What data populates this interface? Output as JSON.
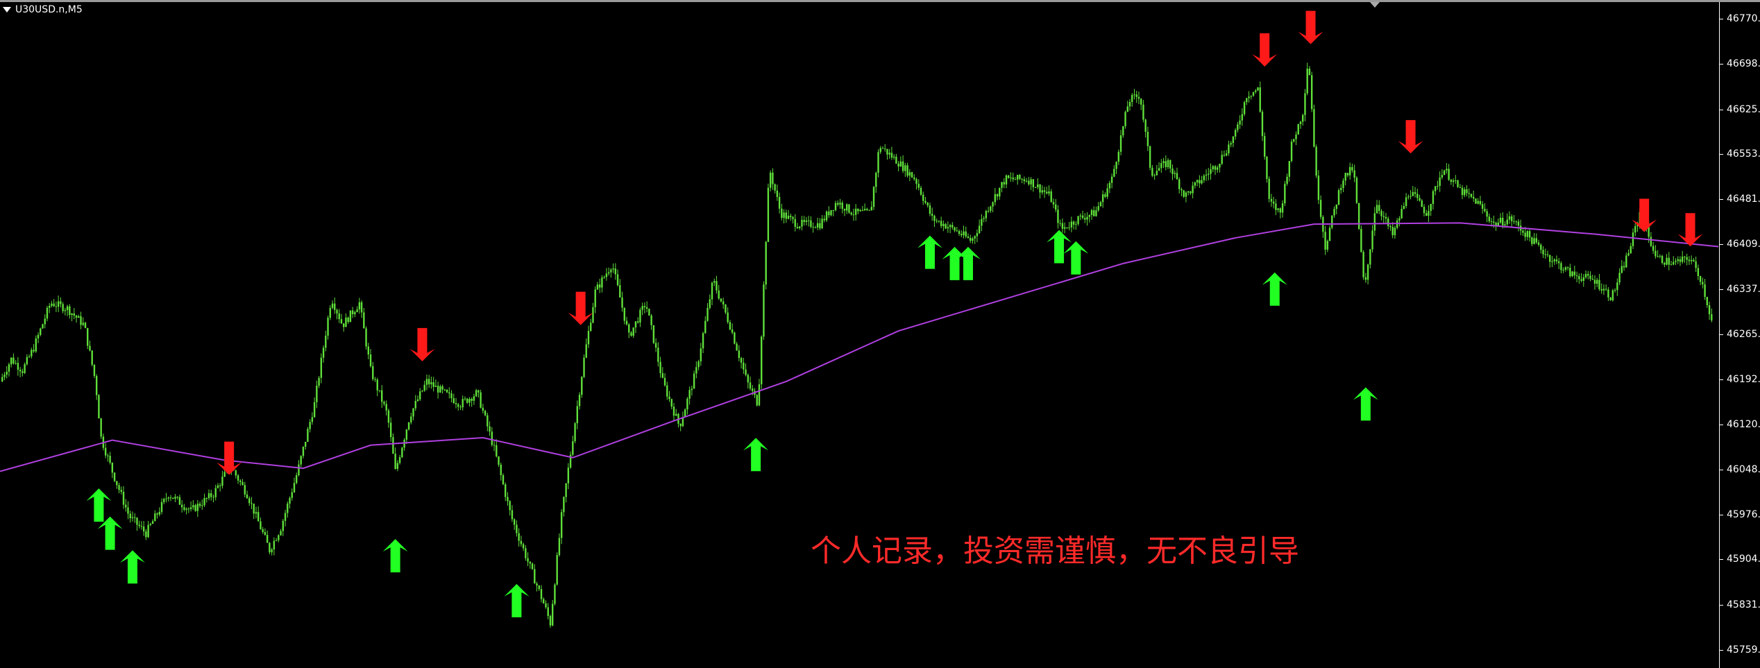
{
  "window": {
    "symbol_title": "U30USD.n,M5"
  },
  "annotation": "个人记录，投资需谨慎，无不良引导",
  "colors": {
    "background": "#000000",
    "candle": "#5fe03a",
    "moving_average": "#b040e0",
    "buy_arrow": "#22ff22",
    "sell_arrow": "#ff1a1a",
    "annotation": "#ff2a2a",
    "axis_text": "#ffffff"
  },
  "icons": {
    "menu": "triangle-down-icon",
    "chart_shift": "triangle-down-icon",
    "buy": "arrow-up-icon",
    "sell": "arrow-down-icon"
  },
  "chart_data": {
    "type": "candlestick",
    "symbol": "U30USD.n",
    "timeframe": "M5",
    "ylim": [
      45725,
      46800
    ],
    "y_ticks": [
      "46770.0",
      "46698.0",
      "46625.0",
      "46553.0",
      "46481.0",
      "46409.0",
      "46337.0",
      "46265.0",
      "46192.0",
      "46120.0",
      "46048.0",
      "45976.0",
      "45904.0",
      "45831.0",
      "45759.0"
    ],
    "price_path": [
      [
        0,
        46189
      ],
      [
        1,
        46225
      ],
      [
        2,
        46207
      ],
      [
        3,
        46243
      ],
      [
        4.5,
        46315
      ],
      [
        6,
        46306
      ],
      [
        7.5,
        46279
      ],
      [
        8.5,
        46189
      ],
      [
        9,
        46099
      ],
      [
        10,
        46045
      ],
      [
        11.5,
        45973
      ],
      [
        13,
        45946
      ],
      [
        15,
        46009
      ],
      [
        17,
        45982
      ],
      [
        19,
        46009
      ],
      [
        20.5,
        46054
      ],
      [
        22,
        46009
      ],
      [
        24,
        45919
      ],
      [
        25,
        45955
      ],
      [
        26.5,
        46045
      ],
      [
        28,
        46153
      ],
      [
        29.5,
        46324
      ],
      [
        30.5,
        46279
      ],
      [
        32,
        46315
      ],
      [
        33,
        46207
      ],
      [
        34.5,
        46135
      ],
      [
        35.2,
        46045
      ],
      [
        36.5,
        46135
      ],
      [
        38,
        46189
      ],
      [
        39.5,
        46171
      ],
      [
        41,
        46153
      ],
      [
        42.5,
        46171
      ],
      [
        44,
        46081
      ],
      [
        45.5,
        45973
      ],
      [
        47,
        45901
      ],
      [
        48.5,
        45829
      ],
      [
        49,
        45802
      ],
      [
        50,
        45973
      ],
      [
        51,
        46099
      ],
      [
        52,
        46225
      ],
      [
        53,
        46333
      ],
      [
        54.5,
        46378
      ],
      [
        56,
        46261
      ],
      [
        57.5,
        46315
      ],
      [
        59,
        46189
      ],
      [
        60.5,
        46117
      ],
      [
        62,
        46207
      ],
      [
        63.5,
        46351
      ],
      [
        65,
        46279
      ],
      [
        66.5,
        46189
      ],
      [
        67.5,
        46153
      ],
      [
        68.5,
        46531
      ],
      [
        69.5,
        46459
      ],
      [
        71,
        46441
      ],
      [
        73,
        46441
      ],
      [
        74.5,
        46477
      ],
      [
        76,
        46459
      ],
      [
        77.5,
        46459
      ],
      [
        78.3,
        46567
      ],
      [
        80,
        46540
      ],
      [
        81.5,
        46513
      ],
      [
        83,
        46450
      ],
      [
        85,
        46432
      ],
      [
        86.5,
        46414
      ],
      [
        88,
        46468
      ],
      [
        89.5,
        46513
      ],
      [
        91.5,
        46513
      ],
      [
        93.5,
        46486
      ],
      [
        94.5,
        46432
      ],
      [
        96,
        46450
      ],
      [
        97.5,
        46459
      ],
      [
        99,
        46513
      ],
      [
        100.5,
        46639
      ],
      [
        101.5,
        46648
      ],
      [
        102.5,
        46522
      ],
      [
        104,
        46540
      ],
      [
        105.5,
        46486
      ],
      [
        107,
        46513
      ],
      [
        108.5,
        46540
      ],
      [
        110,
        46585
      ],
      [
        111,
        46648
      ],
      [
        112,
        46657
      ],
      [
        113,
        46477
      ],
      [
        114,
        46459
      ],
      [
        115,
        46567
      ],
      [
        116,
        46621
      ],
      [
        116.5,
        46711
      ],
      [
        117.2,
        46513
      ],
      [
        118,
        46405
      ],
      [
        119.5,
        46513
      ],
      [
        120.5,
        46531
      ],
      [
        121.5,
        46333
      ],
      [
        122.5,
        46477
      ],
      [
        124,
        46423
      ],
      [
        125.5,
        46495
      ],
      [
        127,
        46459
      ],
      [
        128.5,
        46531
      ],
      [
        130,
        46495
      ],
      [
        131.5,
        46477
      ],
      [
        133,
        46441
      ],
      [
        134.5,
        46450
      ],
      [
        136,
        46423
      ],
      [
        138,
        46387
      ],
      [
        140,
        46360
      ],
      [
        142,
        46351
      ],
      [
        143.5,
        46324
      ],
      [
        145,
        46396
      ],
      [
        146,
        46459
      ],
      [
        147.5,
        46387
      ],
      [
        149,
        46378
      ],
      [
        150.5,
        46387
      ],
      [
        151.5,
        46351
      ],
      [
        152.5,
        46279
      ]
    ],
    "moving_average": [
      [
        0,
        46045
      ],
      [
        10,
        46095
      ],
      [
        20,
        46063
      ],
      [
        27,
        46050
      ],
      [
        33,
        46087
      ],
      [
        43,
        46099
      ],
      [
        51,
        46067
      ],
      [
        60,
        46126
      ],
      [
        70,
        46189
      ],
      [
        80,
        46270
      ],
      [
        90,
        46324
      ],
      [
        100,
        46378
      ],
      [
        110,
        46419
      ],
      [
        117,
        46441
      ],
      [
        130,
        46443
      ],
      [
        142,
        46425
      ],
      [
        153,
        46405
      ]
    ],
    "buy_signals": [
      [
        8.8,
        45991
      ],
      [
        9.8,
        45946
      ],
      [
        11.8,
        45892
      ],
      [
        35.2,
        45910
      ],
      [
        46,
        45838
      ],
      [
        67.3,
        46072
      ],
      [
        82.8,
        46396
      ],
      [
        85,
        46378
      ],
      [
        86.2,
        46378
      ],
      [
        94.3,
        46405
      ],
      [
        95.8,
        46387
      ],
      [
        113.5,
        46337
      ],
      [
        121.6,
        46153
      ]
    ],
    "sell_signals": [
      [
        20.4,
        46066
      ],
      [
        37.6,
        46248
      ],
      [
        51.7,
        46306
      ],
      [
        112.6,
        46720
      ],
      [
        116.7,
        46756
      ],
      [
        125.6,
        46581
      ],
      [
        146.4,
        46455
      ],
      [
        150.5,
        46432
      ]
    ]
  }
}
